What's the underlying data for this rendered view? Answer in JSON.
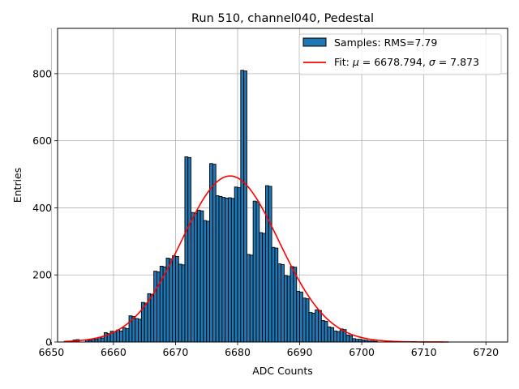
{
  "chart_data": {
    "type": "bar",
    "title": "Run 510, channel040, Pedestal",
    "xlabel": "ADC Counts",
    "ylabel": "Entries",
    "xlim": [
      6651,
      6723.5
    ],
    "ylim": [
      0,
      935
    ],
    "x_ticks": [
      6650,
      6660,
      6670,
      6680,
      6690,
      6700,
      6710,
      6720
    ],
    "y_ticks": [
      0,
      200,
      400,
      600,
      800
    ],
    "grid": true,
    "legend_position": "top-right",
    "bin_width": 1,
    "series": [
      {
        "name": "Samples: RMS=7.79",
        "kind": "histogram",
        "color": "#1f77b4",
        "edge_color": "#000000",
        "bins": [
          [
            6654,
            6,
            7
          ],
          [
            6656,
            6,
            5
          ],
          [
            6657,
            9,
            8
          ],
          [
            6658,
            14,
            12
          ],
          [
            6659,
            28,
            25
          ],
          [
            6660,
            32,
            30
          ],
          [
            6661,
            36,
            33
          ],
          [
            6662,
            42,
            40
          ],
          [
            6663,
            78,
            76
          ],
          [
            6664,
            70,
            68
          ],
          [
            6665,
            118,
            116
          ],
          [
            6666,
            144,
            142
          ],
          [
            6667,
            211,
            209
          ],
          [
            6668,
            226,
            224
          ],
          [
            6669,
            250,
            248
          ],
          [
            6670,
            257,
            255
          ],
          [
            6671,
            232,
            230
          ],
          [
            6672,
            552,
            550
          ],
          [
            6673,
            386,
            384
          ],
          [
            6674,
            393,
            391
          ],
          [
            6675,
            362,
            360
          ],
          [
            6676,
            532,
            530
          ],
          [
            6677,
            436,
            434
          ],
          [
            6678,
            431,
            429
          ],
          [
            6679,
            430,
            428
          ],
          [
            6680,
            462,
            460
          ],
          [
            6681,
            810,
            808
          ],
          [
            6682,
            261,
            259
          ],
          [
            6683,
            420,
            418
          ],
          [
            6684,
            326,
            324
          ],
          [
            6685,
            466,
            464
          ],
          [
            6686,
            282,
            280
          ],
          [
            6687,
            233,
            231
          ],
          [
            6688,
            198,
            196
          ],
          [
            6689,
            225,
            223
          ],
          [
            6690,
            151,
            149
          ],
          [
            6691,
            131,
            129
          ],
          [
            6692,
            88,
            86
          ],
          [
            6693,
            96,
            94
          ],
          [
            6694,
            64,
            62
          ],
          [
            6695,
            45,
            43
          ],
          [
            6696,
            33,
            31
          ],
          [
            6697,
            39,
            37
          ],
          [
            6698,
            21,
            19
          ],
          [
            6699,
            10,
            8
          ],
          [
            6700,
            8,
            6
          ],
          [
            6701,
            5,
            3
          ],
          [
            6702,
            3,
            2
          ]
        ]
      },
      {
        "name": "Fit: μ = 6678.794, σ = 7.873",
        "legend_prefix": "Fit: ",
        "legend_mu_symbol": "μ",
        "legend_mu_value": " = 6678.794, ",
        "legend_sigma_symbol": "σ",
        "legend_sigma_value": " = 7.873",
        "kind": "line",
        "color": "#ff0000",
        "mu": 6678.794,
        "sigma": 7.873,
        "amplitude": 495,
        "x_range": [
          6652,
          6714
        ]
      }
    ]
  }
}
